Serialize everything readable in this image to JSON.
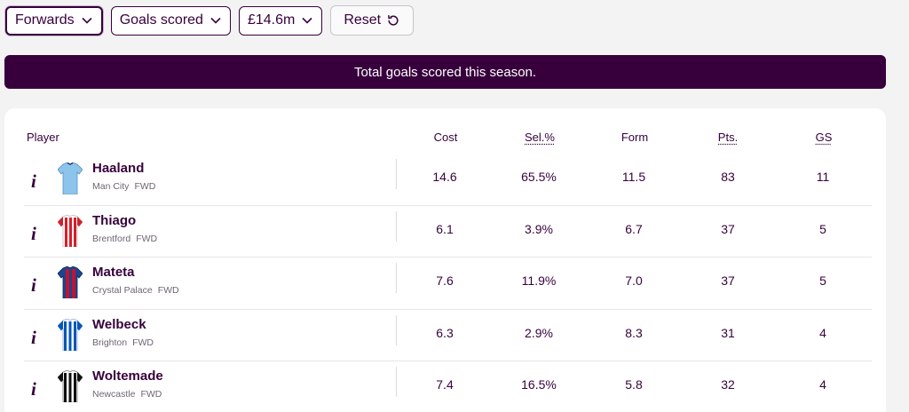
{
  "filters": {
    "position": "Forwards",
    "stat": "Goals scored",
    "price": "£14.6m",
    "reset_label": "Reset"
  },
  "banner": "Total goals scored this season.",
  "table": {
    "headers": {
      "player": "Player",
      "cost": "Cost",
      "sel": "Sel.%",
      "form": "Form",
      "pts": "Pts.",
      "gs": "GS"
    },
    "rows": [
      {
        "name": "Haaland",
        "team": "Man City",
        "pos": "FWD",
        "cost": "14.6",
        "sel": "65.5%",
        "form": "11.5",
        "pts": "83",
        "gs": "11",
        "kit": "mancity"
      },
      {
        "name": "Thiago",
        "team": "Brentford",
        "pos": "FWD",
        "cost": "6.1",
        "sel": "3.9%",
        "form": "6.7",
        "pts": "37",
        "gs": "5",
        "kit": "brentford"
      },
      {
        "name": "Mateta",
        "team": "Crystal Palace",
        "pos": "FWD",
        "cost": "7.6",
        "sel": "11.9%",
        "form": "7.0",
        "pts": "37",
        "gs": "5",
        "kit": "palace"
      },
      {
        "name": "Welbeck",
        "team": "Brighton",
        "pos": "FWD",
        "cost": "6.3",
        "sel": "2.9%",
        "form": "8.3",
        "pts": "31",
        "gs": "4",
        "kit": "brighton"
      },
      {
        "name": "Woltemade",
        "team": "Newcastle",
        "pos": "FWD",
        "cost": "7.4",
        "sel": "16.5%",
        "form": "5.8",
        "pts": "32",
        "gs": "4",
        "kit": "newcastle"
      }
    ]
  },
  "colors": {
    "brand": "#37003c",
    "background": "#f4f3f4"
  },
  "icons": {
    "info": "info-icon",
    "dropdown": "chevron-down-icon",
    "reset": "reset-icon"
  }
}
